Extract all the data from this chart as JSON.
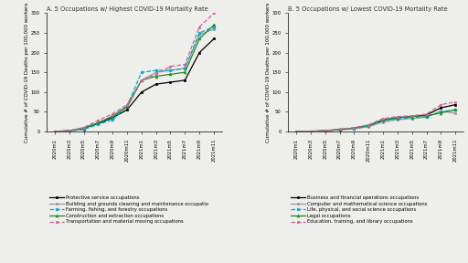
{
  "x_labels": [
    "2020m1",
    "2020m3",
    "2020m5",
    "2020m7",
    "2020m9",
    "2020m11",
    "2021m1",
    "2021m3",
    "2021m5",
    "2021m7",
    "2021m9",
    "2021m11"
  ],
  "panel_a_title": "A. 5 Occupations w/ Highest COVID-19 Mortality Rate",
  "panel_b_title": "B. 5 Occupations w/ Lowest COVID-19 Mortality Rate",
  "ylabel": "Cumulative # of COVID-19 Deaths per 100,000 workers",
  "panel_a": {
    "series": [
      {
        "label": "Protective service occupations",
        "color": "#000000",
        "marker": "s",
        "linestyle": "-",
        "values": [
          0,
          2,
          8,
          20,
          35,
          55,
          100,
          120,
          125,
          130,
          200,
          235
        ]
      },
      {
        "label": "Building and grounds cleaning and maintenance occupatio",
        "color": "#999999",
        "marker": "s",
        "linestyle": "-",
        "values": [
          0,
          2,
          10,
          22,
          40,
          65,
          130,
          150,
          155,
          160,
          245,
          260
        ]
      },
      {
        "label": "Farming, fishing, and forestry occupations",
        "color": "#00aadd",
        "marker": "o",
        "linestyle": "--",
        "values": [
          0,
          1,
          5,
          18,
          30,
          65,
          150,
          155,
          155,
          160,
          250,
          265
        ]
      },
      {
        "label": "Construction and extraction occupations",
        "color": "#228b22",
        "marker": "^",
        "linestyle": "-",
        "values": [
          0,
          2,
          8,
          22,
          38,
          62,
          130,
          140,
          145,
          150,
          235,
          270
        ]
      },
      {
        "label": "Transportation and material moving occupations",
        "color": "#cc6699",
        "marker": "s",
        "linestyle": "--",
        "values": [
          0,
          2,
          10,
          28,
          45,
          68,
          130,
          145,
          165,
          170,
          265,
          300
        ]
      }
    ]
  },
  "panel_b": {
    "series": [
      {
        "label": "Business and financial operations occupations",
        "color": "#000000",
        "marker": "s",
        "linestyle": "-",
        "values": [
          0,
          0.5,
          2,
          5,
          8,
          14,
          28,
          35,
          38,
          42,
          60,
          68
        ]
      },
      {
        "label": "Computer and mathematical science occupations",
        "color": "#999999",
        "marker": "s",
        "linestyle": "-",
        "values": [
          0,
          0.3,
          1.5,
          4,
          7,
          12,
          24,
          30,
          33,
          36,
          52,
          46
        ]
      },
      {
        "label": "Life, physical, and social science occupations",
        "color": "#00aadd",
        "marker": "o",
        "linestyle": "--",
        "values": [
          0,
          0.5,
          2,
          5,
          8,
          14,
          28,
          32,
          35,
          37,
          50,
          55
        ]
      },
      {
        "label": "Legal occupations",
        "color": "#228b22",
        "marker": "^",
        "linestyle": "-",
        "values": [
          0,
          0.5,
          2,
          5,
          9,
          16,
          30,
          35,
          38,
          40,
          47,
          55
        ]
      },
      {
        "label": "Education, training, and library occupations",
        "color": "#cc6699",
        "marker": "s",
        "linestyle": "--",
        "values": [
          0,
          0.5,
          2.5,
          6,
          10,
          17,
          33,
          38,
          40,
          44,
          68,
          75
        ]
      }
    ]
  },
  "ylim": [
    0,
    300
  ],
  "yticks": [
    0,
    50,
    100,
    150,
    200,
    250,
    300
  ],
  "title_color": "#333333",
  "bg_color": "#eeeeea",
  "title_fontsize": 4.8,
  "label_fontsize": 4.0,
  "tick_fontsize": 3.8,
  "legend_fontsize": 3.8,
  "markersize": 2.0,
  "linewidth": 0.9
}
